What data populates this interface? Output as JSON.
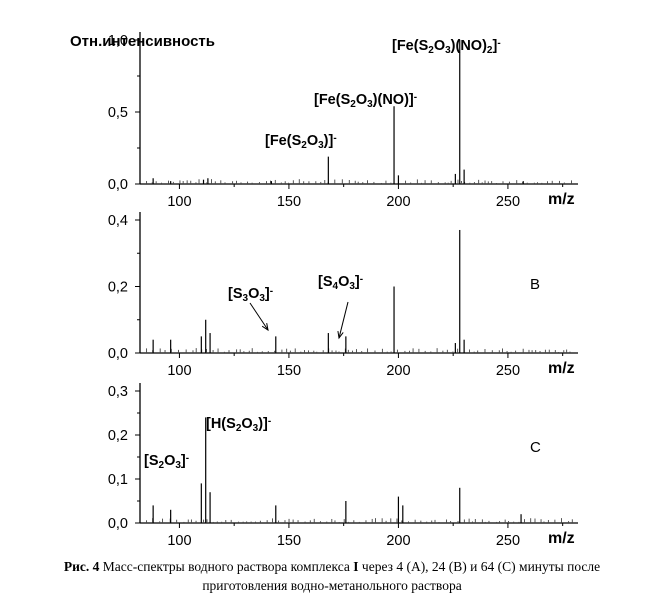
{
  "caption": {
    "fig_label": "Рис. 4",
    "text_before_bold": " Масс-спектры водного раствора комплекса ",
    "bold_compound": "I",
    "text_after_bold": " через 4 (A), 24 (B) и 64 (C) минуты после",
    "line2": "приготовления водно-метанольного раствора"
  },
  "chart_data": [
    {
      "type": "bar",
      "panel": "",
      "title": "",
      "ylabel": "Отн.интенсивность",
      "xlabel": "m/z",
      "xlim": [
        82,
        282
      ],
      "ylim": [
        0,
        1.0
      ],
      "xticks": [
        "100",
        "150",
        "200",
        "250"
      ],
      "yticks": [
        "0,0",
        "0,5",
        "1,0"
      ],
      "peaks": [
        {
          "x": 88,
          "y": 0.04
        },
        {
          "x": 96,
          "y": 0.02
        },
        {
          "x": 111,
          "y": 0.03
        },
        {
          "x": 113,
          "y": 0.04
        },
        {
          "x": 142,
          "y": 0.02
        },
        {
          "x": 168,
          "y": 0.19
        },
        {
          "x": 198,
          "y": 0.54
        },
        {
          "x": 200,
          "y": 0.06
        },
        {
          "x": 226,
          "y": 0.07
        },
        {
          "x": 228,
          "y": 1.0
        },
        {
          "x": 230,
          "y": 0.1
        },
        {
          "x": 257,
          "y": 0.02
        }
      ],
      "annotations": [
        {
          "x": 168,
          "y": 0.19,
          "parts": [
            {
              "t": "[Fe(S"
            },
            {
              "t": "2",
              "sub": true
            },
            {
              "t": "O"
            },
            {
              "t": "3",
              "sub": true
            },
            {
              "t": ")]"
            },
            {
              "t": "-",
              "sup": true
            }
          ]
        },
        {
          "x": 198,
          "y": 0.54,
          "parts": [
            {
              "t": "[Fe(S"
            },
            {
              "t": "2",
              "sub": true
            },
            {
              "t": "O"
            },
            {
              "t": "3",
              "sub": true
            },
            {
              "t": ")(NO)]"
            },
            {
              "t": "-",
              "sup": true
            }
          ]
        },
        {
          "x": 228,
          "y": 1.0,
          "parts": [
            {
              "t": "[Fe(S"
            },
            {
              "t": "2",
              "sub": true
            },
            {
              "t": "O"
            },
            {
              "t": "3",
              "sub": true
            },
            {
              "t": ")(NO)"
            },
            {
              "t": "2",
              "sub": true
            },
            {
              "t": "]"
            },
            {
              "t": "-",
              "sup": true
            }
          ]
        }
      ]
    },
    {
      "type": "bar",
      "panel": "B",
      "title": "",
      "ylabel": "",
      "xlabel": "m/z",
      "xlim": [
        82,
        282
      ],
      "ylim": [
        0,
        0.4
      ],
      "xticks": [
        "100",
        "150",
        "200",
        "250"
      ],
      "yticks": [
        "0,0",
        "0,2",
        "0,4"
      ],
      "peaks": [
        {
          "x": 88,
          "y": 0.04
        },
        {
          "x": 96,
          "y": 0.04
        },
        {
          "x": 110,
          "y": 0.05
        },
        {
          "x": 112,
          "y": 0.1
        },
        {
          "x": 114,
          "y": 0.06
        },
        {
          "x": 144,
          "y": 0.05
        },
        {
          "x": 168,
          "y": 0.06
        },
        {
          "x": 176,
          "y": 0.05
        },
        {
          "x": 198,
          "y": 0.2
        },
        {
          "x": 226,
          "y": 0.03
        },
        {
          "x": 228,
          "y": 0.37
        },
        {
          "x": 230,
          "y": 0.04
        }
      ],
      "annotations": [
        {
          "x": 144,
          "y": 0.06,
          "parts": [
            {
              "t": "[S"
            },
            {
              "t": "3",
              "sub": true
            },
            {
              "t": "O"
            },
            {
              "t": "3",
              "sub": true
            },
            {
              "t": "]"
            },
            {
              "t": "-",
              "sup": true
            }
          ]
        },
        {
          "x": 176,
          "y": 0.05,
          "parts": [
            {
              "t": "[S"
            },
            {
              "t": "4",
              "sub": true
            },
            {
              "t": "O"
            },
            {
              "t": "3",
              "sub": true
            },
            {
              "t": "]"
            },
            {
              "t": "-",
              "sup": true
            }
          ]
        }
      ]
    },
    {
      "type": "bar",
      "panel": "C",
      "title": "",
      "ylabel": "",
      "xlabel": "m/z",
      "xlim": [
        82,
        282
      ],
      "ylim": [
        0,
        0.3
      ],
      "xticks": [
        "100",
        "150",
        "200",
        "250"
      ],
      "yticks": [
        "0,0",
        "0,1",
        "0,2",
        "0,3"
      ],
      "peaks": [
        {
          "x": 88,
          "y": 0.04
        },
        {
          "x": 96,
          "y": 0.03
        },
        {
          "x": 110,
          "y": 0.09
        },
        {
          "x": 112,
          "y": 0.24
        },
        {
          "x": 114,
          "y": 0.07
        },
        {
          "x": 144,
          "y": 0.04
        },
        {
          "x": 176,
          "y": 0.05
        },
        {
          "x": 200,
          "y": 0.06
        },
        {
          "x": 202,
          "y": 0.04
        },
        {
          "x": 228,
          "y": 0.08
        },
        {
          "x": 256,
          "y": 0.02
        }
      ],
      "annotations": [
        {
          "x": 112,
          "y": 0.24,
          "parts": [
            {
              "t": "[H(S"
            },
            {
              "t": "2",
              "sub": true
            },
            {
              "t": "O"
            },
            {
              "t": "3",
              "sub": true
            },
            {
              "t": ")]"
            },
            {
              "t": "-",
              "sup": true
            }
          ]
        },
        {
          "x": 111,
          "y": 0.08,
          "parts": [
            {
              "t": "[S"
            },
            {
              "t": "2",
              "sub": true
            },
            {
              "t": "O"
            },
            {
              "t": "3",
              "sub": true
            },
            {
              "t": "]"
            },
            {
              "t": "-",
              "sup": true
            }
          ]
        }
      ]
    }
  ]
}
